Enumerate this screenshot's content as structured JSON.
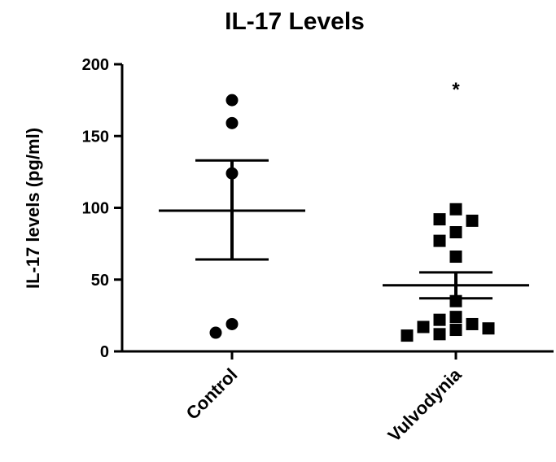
{
  "chart_data": {
    "type": "scatter",
    "title": "IL-17  Levels",
    "ylabel": "IL-17 levels (pg/ml)",
    "xlabel": "",
    "ylim": [
      0,
      200
    ],
    "yticks": [
      0,
      50,
      100,
      150,
      200
    ],
    "categories": [
      "Control",
      "Vulvodynia"
    ],
    "grid": false,
    "legend": "none",
    "series": [
      {
        "category": "Control",
        "marker": "circle",
        "points": [
          175,
          159,
          124,
          19,
          13
        ],
        "mean": 98,
        "sem": [
          64,
          133
        ]
      },
      {
        "category": "Vulvodynia",
        "marker": "square",
        "points": [
          99,
          92,
          91,
          83,
          77,
          66,
          35,
          24,
          22,
          19,
          17,
          16,
          15,
          12,
          11
        ],
        "mean": 46,
        "sem": [
          37,
          55
        ]
      }
    ],
    "annotations": [
      {
        "text": "*",
        "category": "Vulvodynia",
        "y": 188
      }
    ]
  }
}
